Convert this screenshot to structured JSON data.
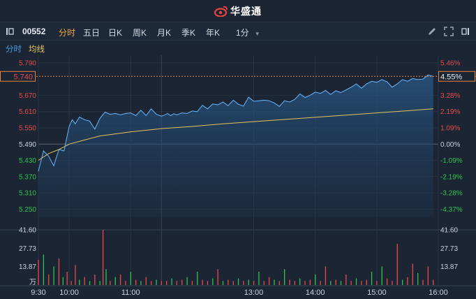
{
  "header": {
    "brand": "华盛通"
  },
  "toolbar": {
    "code": "00552",
    "tabs": [
      "分时",
      "五日",
      "日K",
      "周K",
      "月K",
      "季K",
      "年K"
    ],
    "active_tab": "分时",
    "interval": "1分"
  },
  "subbar": {
    "tab1": "分时",
    "tab2": "均线"
  },
  "colors": {
    "up": "#e84a4a",
    "down": "#31c24e",
    "price_line": "#69b7ff",
    "avg_line": "#e6c35a",
    "active": "#f0a93c"
  },
  "chart_data": {
    "type": "line",
    "price_axis": {
      "ticks": [
        "5.790",
        "5.670",
        "5.610",
        "5.550",
        "5.490",
        "5.430",
        "5.370",
        "5.310",
        "5.250"
      ],
      "pct_ticks": [
        "5.46%",
        "3.28%",
        "2.19%",
        "1.09%",
        "0.00%",
        "-1.09%",
        "-2.19%",
        "-3.28%",
        "-4.37%"
      ],
      "ylim": [
        5.22,
        5.8
      ],
      "prev_close": 5.49
    },
    "current": {
      "price": "5.740",
      "pct": "4.55%",
      "value": 5.74
    },
    "x_labels": [
      "9:30",
      "10:00",
      "11:00",
      "13:00",
      "14:00",
      "15:00",
      "16:00"
    ],
    "volume_axis": {
      "ticks": [
        "41.60",
        "27.73",
        "13.87"
      ],
      "unit": "万",
      "max": 41.6
    },
    "series": [
      {
        "name": "分时",
        "x": [
          0,
          5,
          10,
          15,
          20,
          25,
          30,
          33,
          36,
          40,
          45,
          50,
          55,
          60,
          65,
          70,
          75,
          80,
          85,
          90,
          95,
          100,
          105,
          110,
          115,
          120,
          123,
          126,
          129,
          132,
          135,
          140,
          145,
          150,
          155,
          160,
          165,
          170,
          175,
          180,
          185,
          190,
          195,
          200,
          205,
          210,
          215,
          220,
          225,
          230,
          235,
          240,
          245,
          250,
          255,
          260,
          265,
          270,
          275,
          280,
          285,
          290,
          295,
          300,
          305,
          310,
          315,
          320,
          325,
          330,
          335,
          340,
          345,
          350,
          355,
          360,
          365,
          370,
          375,
          380,
          385
        ],
        "values": [
          5.39,
          5.465,
          5.445,
          5.41,
          5.47,
          5.465,
          5.555,
          5.58,
          5.565,
          5.59,
          5.58,
          5.575,
          5.545,
          5.585,
          5.608,
          5.6,
          5.603,
          5.598,
          5.603,
          5.605,
          5.595,
          5.615,
          5.595,
          5.62,
          5.6,
          5.593,
          5.597,
          5.603,
          5.595,
          5.602,
          5.598,
          5.605,
          5.603,
          5.612,
          5.61,
          5.633,
          5.62,
          5.638,
          5.635,
          5.645,
          5.632,
          5.652,
          5.637,
          5.63,
          5.663,
          5.648,
          5.65,
          5.652,
          5.65,
          5.642,
          5.629,
          5.65,
          5.645,
          5.655,
          5.675,
          5.662,
          5.67,
          5.682,
          5.677,
          5.688,
          5.673,
          5.687,
          5.68,
          5.69,
          5.7,
          5.712,
          5.696,
          5.712,
          5.722,
          5.718,
          5.728,
          5.72,
          5.7,
          5.712,
          5.728,
          5.722,
          5.732,
          5.728,
          5.73,
          5.745,
          5.74
        ]
      },
      {
        "name": "均线",
        "x": [
          0,
          10,
          20,
          30,
          45,
          60,
          90,
          120,
          150,
          180,
          210,
          240,
          270,
          300,
          330,
          360,
          385
        ],
        "values": [
          5.43,
          5.455,
          5.47,
          5.49,
          5.505,
          5.52,
          5.535,
          5.547,
          5.555,
          5.565,
          5.573,
          5.581,
          5.589,
          5.597,
          5.605,
          5.613,
          5.62
        ]
      }
    ],
    "volume_x": [
      0,
      5,
      10,
      15,
      20,
      24,
      28,
      32,
      36,
      40,
      45,
      50,
      55,
      60,
      63,
      66,
      70,
      75,
      80,
      85,
      90,
      95,
      100,
      105,
      110,
      115,
      120,
      125,
      130,
      135,
      140,
      145,
      150,
      155,
      160,
      165,
      170,
      175,
      180,
      185,
      190,
      195,
      200,
      205,
      210,
      215,
      220,
      225,
      230,
      235,
      240,
      245,
      250,
      255,
      260,
      265,
      270,
      275,
      280,
      285,
      290,
      295,
      300,
      305,
      310,
      315,
      320,
      325,
      330,
      335,
      340,
      345,
      350,
      355,
      360,
      365,
      370,
      375,
      380,
      385
    ],
    "volume_values": [
      19,
      23,
      8,
      14,
      20,
      6,
      10,
      3,
      15,
      4,
      6,
      3,
      8,
      3,
      41.6,
      12,
      3,
      6,
      8,
      3,
      10,
      4,
      3,
      6,
      3,
      4,
      3,
      3,
      5,
      3,
      4,
      6,
      3,
      10,
      4,
      3,
      5,
      12,
      3,
      4,
      3,
      5,
      3,
      4,
      3,
      10,
      3,
      6,
      4,
      3,
      12,
      4,
      3,
      5,
      3,
      4,
      8,
      3,
      14,
      3,
      4,
      3,
      8,
      3,
      5,
      3,
      4,
      10,
      3,
      14,
      5,
      3,
      31,
      4,
      6,
      16,
      9,
      4,
      14,
      4
    ],
    "volume_up": [
      1,
      0,
      1,
      0,
      1,
      0,
      1,
      1,
      1,
      0,
      1,
      0,
      1,
      0,
      1,
      0,
      1,
      0,
      1,
      1,
      0,
      1,
      0,
      1,
      1,
      0,
      1,
      1,
      0,
      1,
      1,
      0,
      1,
      0,
      1,
      1,
      0,
      1,
      0,
      1,
      1,
      0,
      1,
      0,
      1,
      0,
      1,
      1,
      0,
      1,
      0,
      1,
      1,
      0,
      1,
      1,
      0,
      1,
      1,
      0,
      1,
      0,
      1,
      1,
      0,
      1,
      1,
      0,
      1,
      0,
      1,
      1,
      1,
      0,
      1,
      1,
      0,
      1,
      1,
      1
    ]
  }
}
